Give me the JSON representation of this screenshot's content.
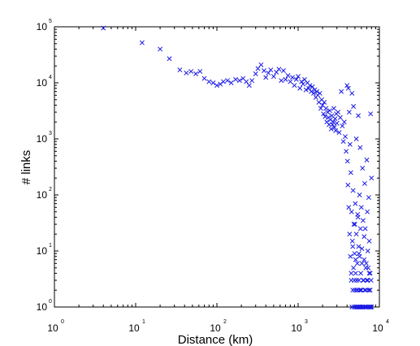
{
  "chart_data": {
    "type": "scatter",
    "xlabel": "Distance (km)",
    "ylabel": "# links",
    "x_scale": "log",
    "y_scale": "log",
    "xlim": [
      1,
      10000
    ],
    "ylim": [
      1,
      100000
    ],
    "x_ticks": [
      {
        "base": "10",
        "exp": "0"
      },
      {
        "base": "10",
        "exp": "1"
      },
      {
        "base": "10",
        "exp": "2"
      },
      {
        "base": "10",
        "exp": "3"
      },
      {
        "base": "10",
        "exp": "4"
      }
    ],
    "y_ticks": [
      {
        "base": "10",
        "exp": "0"
      },
      {
        "base": "10",
        "exp": "1"
      },
      {
        "base": "10",
        "exp": "2"
      },
      {
        "base": "10",
        "exp": "3"
      },
      {
        "base": "10",
        "exp": "4"
      },
      {
        "base": "10",
        "exp": "5"
      }
    ],
    "marker": "x",
    "grid": false,
    "legend": "none",
    "color": "#1a1ae6",
    "series": [
      {
        "points": [
          [
            4,
            95000
          ],
          [
            12,
            52000
          ],
          [
            20,
            40000
          ],
          [
            26,
            27000
          ],
          [
            35,
            17000
          ],
          [
            42,
            15000
          ],
          [
            48,
            16000
          ],
          [
            55,
            14500
          ],
          [
            62,
            16000
          ],
          [
            70,
            12000
          ],
          [
            80,
            10500
          ],
          [
            90,
            10000
          ],
          [
            100,
            9000
          ],
          [
            110,
            9500
          ],
          [
            120,
            10500
          ],
          [
            135,
            11000
          ],
          [
            150,
            10000
          ],
          [
            170,
            11500
          ],
          [
            190,
            11000
          ],
          [
            210,
            12000
          ],
          [
            230,
            10500
          ],
          [
            250,
            9000
          ],
          [
            270,
            11000
          ],
          [
            300,
            14500
          ],
          [
            320,
            18000
          ],
          [
            350,
            21000
          ],
          [
            380,
            16500
          ],
          [
            400,
            12500
          ],
          [
            430,
            15000
          ],
          [
            460,
            17000
          ],
          [
            500,
            13000
          ],
          [
            540,
            15500
          ],
          [
            580,
            17500
          ],
          [
            620,
            11000
          ],
          [
            660,
            16500
          ],
          [
            700,
            11500
          ],
          [
            750,
            13500
          ],
          [
            800,
            10500
          ],
          [
            850,
            12500
          ],
          [
            900,
            9000
          ],
          [
            950,
            11500
          ],
          [
            1000,
            13000
          ],
          [
            1050,
            8000
          ],
          [
            1100,
            10500
          ],
          [
            1150,
            9500
          ],
          [
            1200,
            11500
          ],
          [
            1250,
            7500
          ],
          [
            1300,
            10000
          ],
          [
            1350,
            8000
          ],
          [
            1400,
            9000
          ],
          [
            1450,
            7000
          ],
          [
            1500,
            8500
          ],
          [
            1550,
            6500
          ],
          [
            1600,
            7500
          ],
          [
            1650,
            5500
          ],
          [
            1700,
            7000
          ],
          [
            1750,
            6000
          ],
          [
            1800,
            4500
          ],
          [
            1850,
            6500
          ],
          [
            1900,
            3500
          ],
          [
            1950,
            5000
          ],
          [
            2000,
            4000
          ],
          [
            2050,
            2800
          ],
          [
            2100,
            4500
          ],
          [
            2150,
            2500
          ],
          [
            2200,
            3500
          ],
          [
            2250,
            2000
          ],
          [
            2300,
            3000
          ],
          [
            2350,
            2400
          ],
          [
            2400,
            1800
          ],
          [
            2450,
            3200
          ],
          [
            2500,
            2200
          ],
          [
            2550,
            1500
          ],
          [
            2600,
            2600
          ],
          [
            2650,
            1800
          ],
          [
            2700,
            2000
          ],
          [
            2750,
            3500
          ],
          [
            2800,
            1600
          ],
          [
            2850,
            2300
          ],
          [
            2900,
            1400
          ],
          [
            2950,
            2800
          ],
          [
            3000,
            1900
          ],
          [
            3100,
            3000
          ],
          [
            3200,
            1300
          ],
          [
            3300,
            2400
          ],
          [
            3400,
            7000
          ],
          [
            3500,
            1700
          ],
          [
            3600,
            900
          ],
          [
            3700,
            2000
          ],
          [
            3800,
            1100
          ],
          [
            3900,
            600
          ],
          [
            4000,
            9000
          ],
          [
            4050,
            400
          ],
          [
            4100,
            150
          ],
          [
            4150,
            8000
          ],
          [
            4200,
            60
          ],
          [
            4250,
            3000
          ],
          [
            4300,
            20
          ],
          [
            4350,
            800
          ],
          [
            4400,
            8
          ],
          [
            4450,
            250
          ],
          [
            4500,
            3
          ],
          [
            4550,
            50
          ],
          [
            4600,
            1
          ],
          [
            4650,
            15
          ],
          [
            4700,
            2
          ],
          [
            4750,
            120
          ],
          [
            4800,
            5
          ],
          [
            4850,
            30
          ],
          [
            4900,
            1
          ],
          [
            4950,
            9
          ],
          [
            5000,
            2
          ],
          [
            5050,
            70
          ],
          [
            5100,
            4
          ],
          [
            5150,
            1
          ],
          [
            5200,
            20
          ],
          [
            5250,
            3
          ],
          [
            5300,
            1
          ],
          [
            5350,
            6
          ],
          [
            5400,
            2
          ],
          [
            5450,
            40
          ],
          [
            5500,
            1
          ],
          [
            5550,
            12
          ],
          [
            5600,
            3
          ],
          [
            5650,
            1
          ],
          [
            5700,
            8
          ],
          [
            5750,
            2
          ],
          [
            5800,
            1
          ],
          [
            5850,
            25
          ],
          [
            5900,
            4
          ],
          [
            5950,
            1
          ],
          [
            6000,
            2
          ],
          [
            6100,
            6
          ],
          [
            6200,
            1
          ],
          [
            6300,
            3
          ],
          [
            6400,
            1
          ],
          [
            6500,
            18
          ],
          [
            6600,
            2
          ],
          [
            6700,
            1
          ],
          [
            6800,
            5
          ],
          [
            6900,
            1
          ],
          [
            7000,
            3
          ],
          [
            7100,
            1
          ],
          [
            7200,
            10
          ],
          [
            7300,
            2
          ],
          [
            7400,
            1
          ],
          [
            7500,
            4
          ],
          [
            7600,
            1
          ],
          [
            7700,
            2
          ],
          [
            7800,
            1
          ],
          [
            7900,
            3
          ],
          [
            8000,
            1
          ],
          [
            4600,
            6500
          ],
          [
            4800,
            3800
          ],
          [
            5200,
            1000
          ],
          [
            5500,
            2600
          ],
          [
            5800,
            700
          ],
          [
            6200,
            300
          ],
          [
            6600,
            160
          ],
          [
            7000,
            420
          ],
          [
            7400,
            90
          ],
          [
            7800,
            2800
          ],
          [
            8000,
            200
          ],
          [
            5000,
            30
          ],
          [
            5400,
            45
          ],
          [
            5700,
            100
          ],
          [
            6000,
            60
          ],
          [
            6300,
            35
          ],
          [
            6700,
            25
          ],
          [
            7100,
            50
          ],
          [
            7500,
            15
          ],
          [
            4700,
            12
          ],
          [
            5100,
            7
          ],
          [
            5600,
            9
          ],
          [
            6100,
            11
          ],
          [
            6500,
            7
          ],
          [
            6900,
            6
          ],
          [
            7300,
            5
          ],
          [
            7700,
            4
          ],
          [
            4500,
            4
          ],
          [
            4900,
            3
          ],
          [
            5300,
            2
          ],
          [
            5900,
            2
          ],
          [
            6400,
            3
          ],
          [
            6800,
            2
          ],
          [
            7200,
            3
          ],
          [
            7600,
            2
          ]
        ]
      }
    ]
  }
}
